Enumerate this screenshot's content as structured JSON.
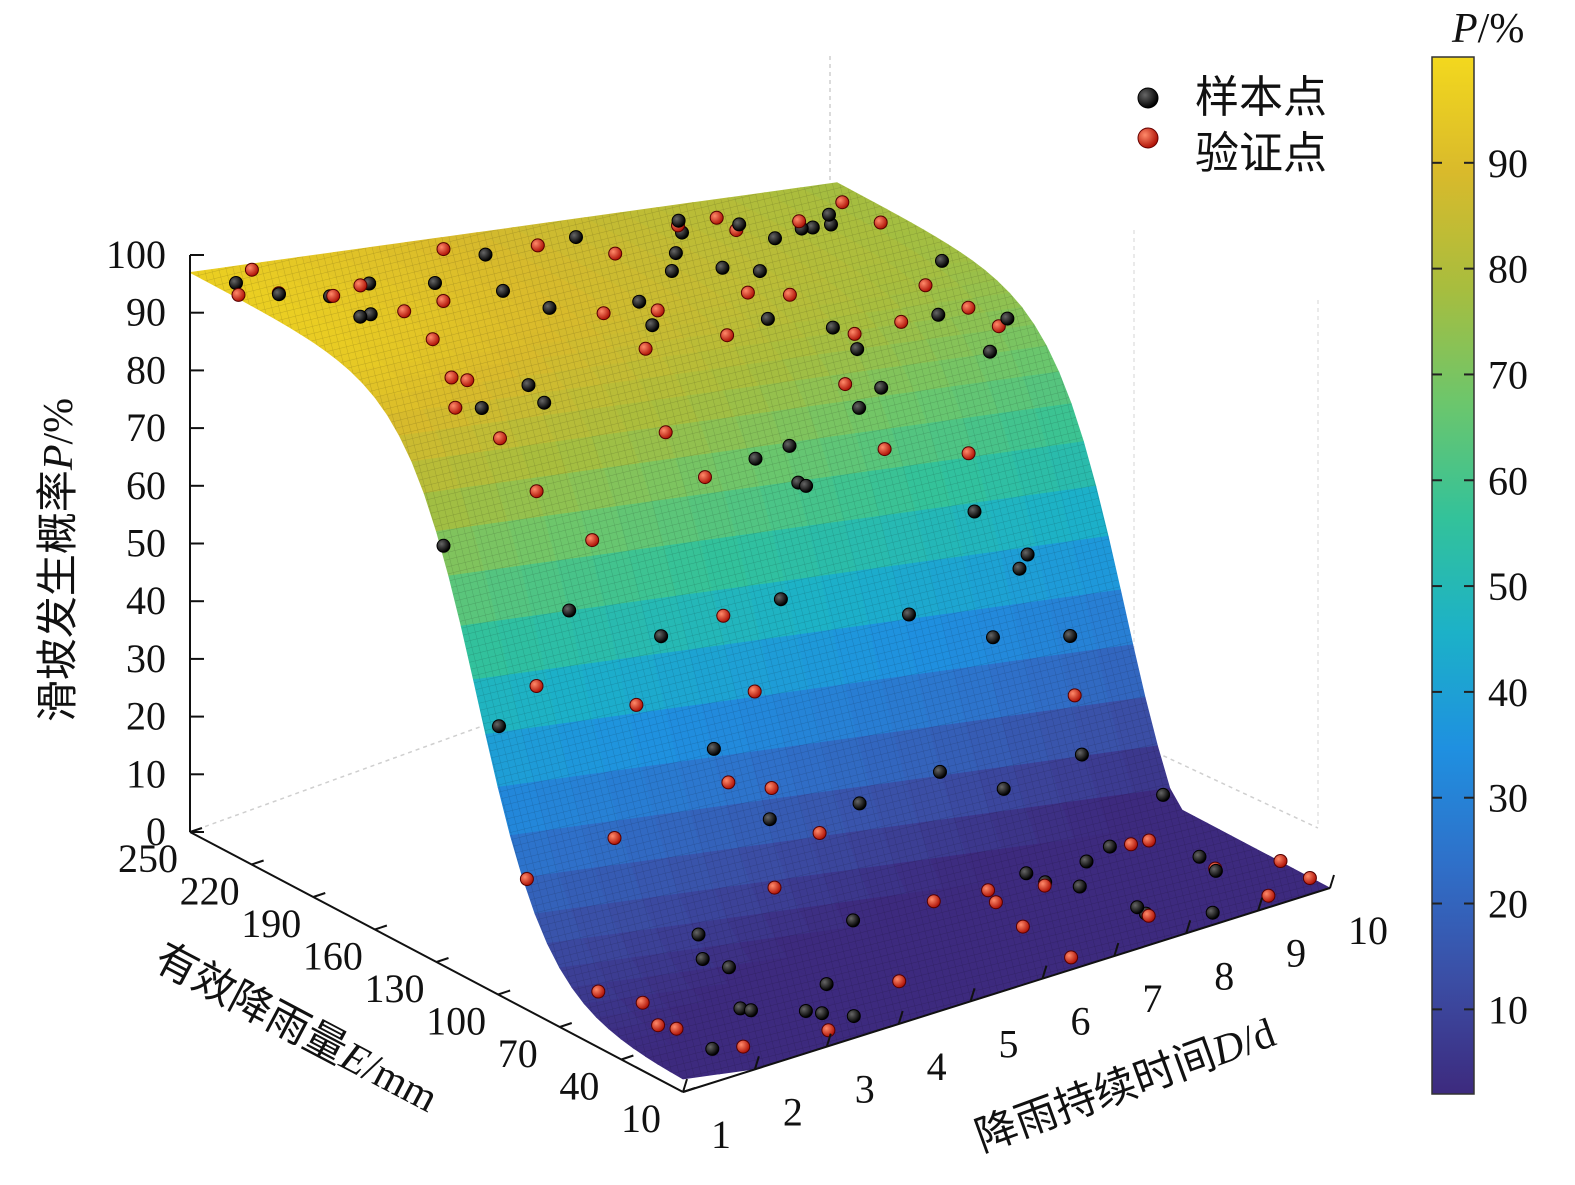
{
  "chart_data": {
    "type": "surface3d",
    "axes": {
      "z": {
        "label_prefix": "滑坡发生概率",
        "label_var": "P",
        "label_unit": "/%",
        "ticks": [
          "0",
          "10",
          "20",
          "30",
          "40",
          "50",
          "60",
          "70",
          "80",
          "90",
          "100"
        ],
        "range": [
          0,
          100
        ]
      },
      "e": {
        "label_prefix": "有效降雨量",
        "label_var": "E",
        "label_unit": "/mm",
        "ticks": [
          "250",
          "220",
          "190",
          "160",
          "130",
          "100",
          "70",
          "40",
          "10"
        ],
        "range": [
          10,
          250
        ]
      },
      "d": {
        "label_prefix": "降雨持续时间",
        "label_var": "D",
        "label_unit": "/d",
        "ticks": [
          "1",
          "2",
          "3",
          "4",
          "5",
          "6",
          "7",
          "8",
          "9",
          "10"
        ],
        "range": [
          1,
          10
        ]
      }
    },
    "colorbar": {
      "title_var": "P",
      "title_unit": "/%",
      "ticks": [
        "10",
        "20",
        "30",
        "40",
        "50",
        "60",
        "70",
        "80",
        "90"
      ],
      "range": [
        2,
        100
      ],
      "colors": [
        "#3d2a7e",
        "#3b4ea5",
        "#2f70c9",
        "#1f90e0",
        "#1cb1c8",
        "#33c29a",
        "#6cc66c",
        "#a8bd3e",
        "#d9ba2b",
        "#f3d81e"
      ]
    },
    "legend": {
      "position": "top-right",
      "items": [
        {
          "label": "样本点",
          "color": "#111111"
        },
        {
          "label": "验证点",
          "color": "#e02b1a"
        }
      ]
    },
    "grid": false
  }
}
